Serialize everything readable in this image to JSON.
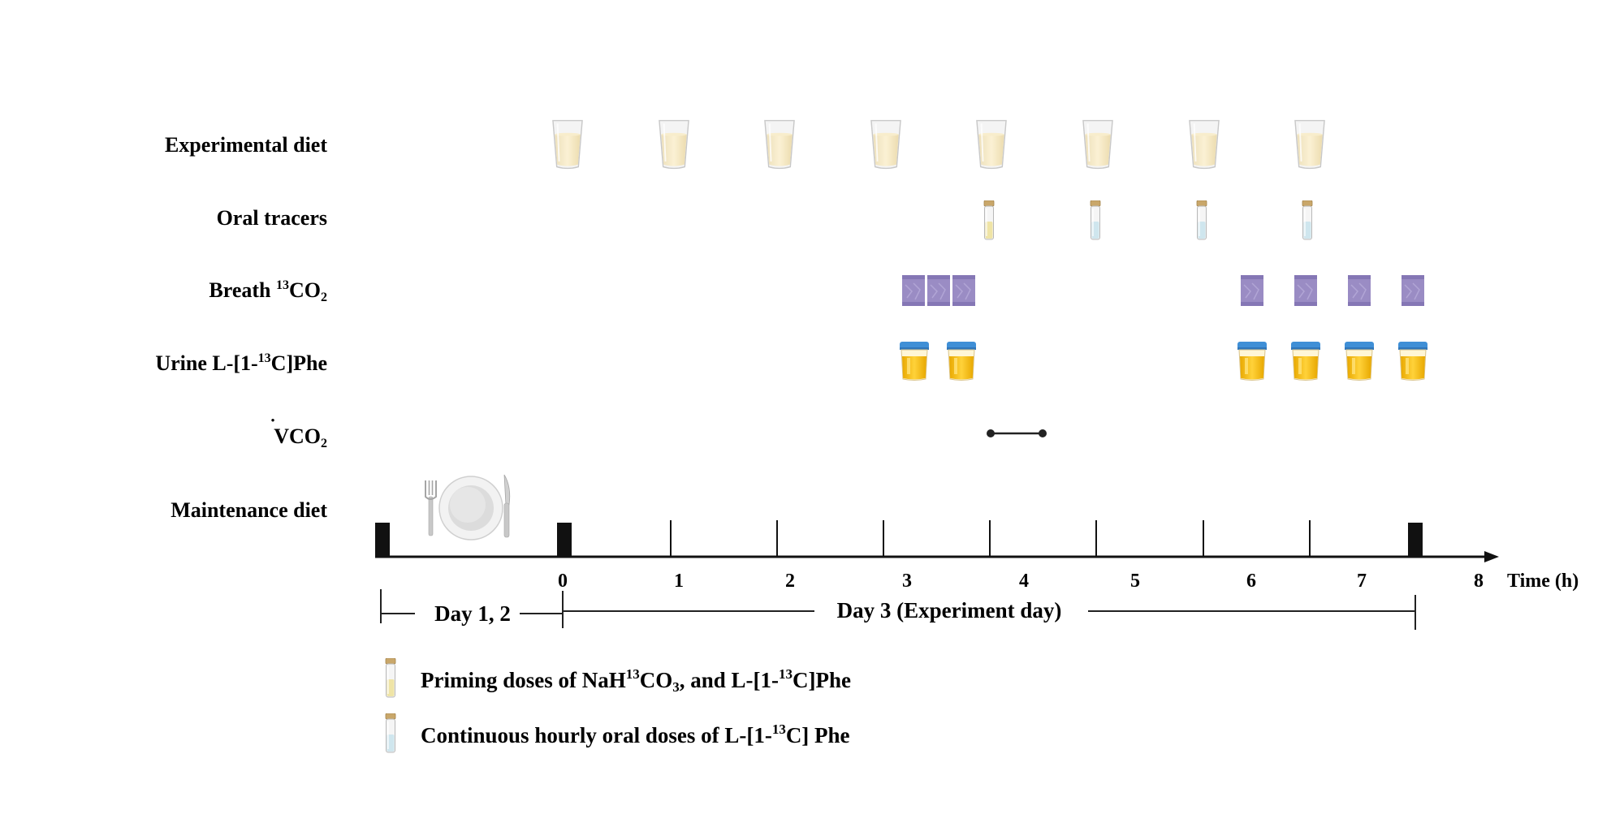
{
  "rows": [
    {
      "id": "experimental-diet",
      "label": "Experimental diet"
    },
    {
      "id": "oral-tracers",
      "label": "Oral tracers"
    },
    {
      "id": "breath",
      "label_main": "Breath ",
      "label_sup": "13",
      "label_rest": "CO",
      "label_sub": "2"
    },
    {
      "id": "urine",
      "label_main": "Urine L-[1-",
      "label_sup": "13",
      "label_rest": "C]Phe"
    },
    {
      "id": "vco2",
      "label_main": "VCO",
      "label_sub": "2",
      "label_dot": "•"
    },
    {
      "id": "maintenance-diet",
      "label": "Maintenance diet"
    }
  ],
  "timeline": {
    "ticks": [
      "0",
      "1",
      "2",
      "3",
      "4",
      "5",
      "6",
      "7",
      "8"
    ],
    "axis_label": "Time (h)"
  },
  "periods": {
    "day12": "Day 1, 2",
    "day3": "Day  3  (Experiment day)"
  },
  "legend": {
    "priming": {
      "a": "Priming doses of NaH",
      "sup1": "13",
      "b": "CO",
      "sub": "3",
      "c": ", and L-[1-",
      "sup2": "13",
      "d": "C]Phe"
    },
    "continuous": {
      "a": "Continuous hourly oral doses of L-[1-",
      "sup": "13",
      "b": "C] Phe"
    }
  },
  "schedule": {
    "experimental_diet_hours": [
      0,
      1,
      2,
      3,
      4,
      5,
      6,
      7
    ],
    "oral_tracers": [
      {
        "hour": 4,
        "type": "priming"
      },
      {
        "hour": 5,
        "type": "continuous"
      },
      {
        "hour": 6,
        "type": "continuous"
      },
      {
        "hour": 7,
        "type": "continuous"
      }
    ],
    "breath_samples_hours": [
      3.25,
      3.5,
      3.75,
      6.5,
      7.0,
      7.5,
      8.0
    ],
    "urine_samples_hours": [
      3.25,
      3.75,
      6.5,
      7.0,
      7.5,
      8.0
    ],
    "vco2_interval_hours": [
      4.0,
      4.5
    ]
  },
  "colors": {
    "diet_glass": "#f6e7bf",
    "tracer_priming": "#efe4a6",
    "tracer_continuous": "#cfe6ee",
    "vial_cap": "#c9a76a",
    "breath_bag": "#9a8cc4",
    "urine_liquid": "#f2b90d",
    "urine_cap": "#3f8fd6",
    "axis": "#111111"
  }
}
